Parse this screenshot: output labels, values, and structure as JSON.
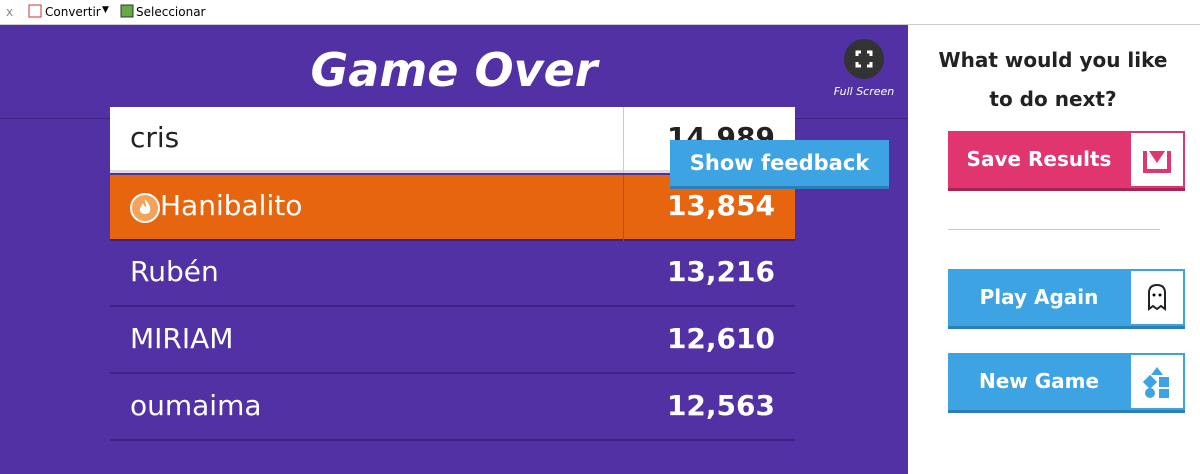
{
  "toolbar": {
    "items": [
      "Convertir",
      "Seleccionar"
    ]
  },
  "game": {
    "title": "Game Over",
    "fullscreen": "Full Screen",
    "leaderboard": [
      {
        "name": "cris",
        "score": "14,989"
      },
      {
        "name": "Hanibalito",
        "score": "13,854"
      },
      {
        "name": "Rubén",
        "score": "13,216"
      },
      {
        "name": "MIRIAM",
        "score": "12,610"
      },
      {
        "name": "oumaima",
        "score": "12,563"
      }
    ],
    "feedback_button": "Show feedback"
  },
  "sidebar": {
    "question": "What would you like to do next?",
    "buttons": [
      "Save Results",
      "Play Again",
      "New Game"
    ]
  }
}
